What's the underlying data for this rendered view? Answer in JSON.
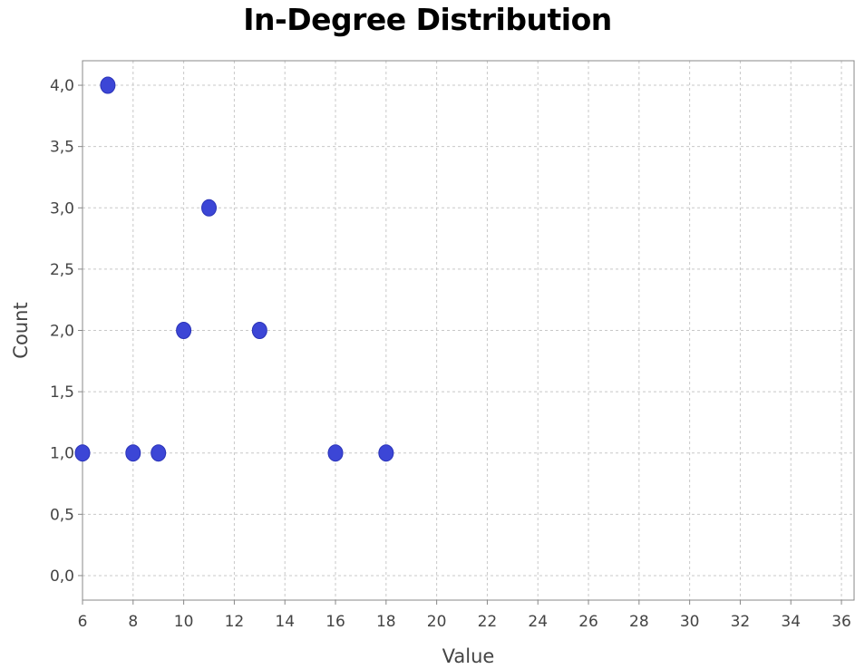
{
  "chart_data": {
    "type": "scatter",
    "title": "In-Degree Distribution",
    "xlabel": "Value",
    "ylabel": "Count",
    "xlim": [
      6,
      36.5
    ],
    "ylim": [
      -0.2,
      4.2
    ],
    "x_ticks": [
      6,
      8,
      10,
      12,
      14,
      16,
      18,
      20,
      22,
      24,
      26,
      28,
      30,
      32,
      34,
      36
    ],
    "x_tick_labels": [
      "6",
      "8",
      "10",
      "12",
      "14",
      "16",
      "18",
      "20",
      "22",
      "24",
      "26",
      "28",
      "30",
      "32",
      "34",
      "36"
    ],
    "y_ticks": [
      0,
      0.5,
      1,
      1.5,
      2,
      2.5,
      3,
      3.5,
      4
    ],
    "y_tick_labels": [
      "0,0",
      "0,5",
      "1,0",
      "1,5",
      "2,0",
      "2,5",
      "3,0",
      "3,5",
      "4,0"
    ],
    "grid": true,
    "legend": "none",
    "marker_color": "#3c46d6",
    "points": [
      {
        "x": 6,
        "y": 1
      },
      {
        "x": 7,
        "y": 4
      },
      {
        "x": 8,
        "y": 1
      },
      {
        "x": 9,
        "y": 1
      },
      {
        "x": 10,
        "y": 2
      },
      {
        "x": 11,
        "y": 3
      },
      {
        "x": 13,
        "y": 2
      },
      {
        "x": 16,
        "y": 1
      },
      {
        "x": 18,
        "y": 1
      }
    ]
  }
}
